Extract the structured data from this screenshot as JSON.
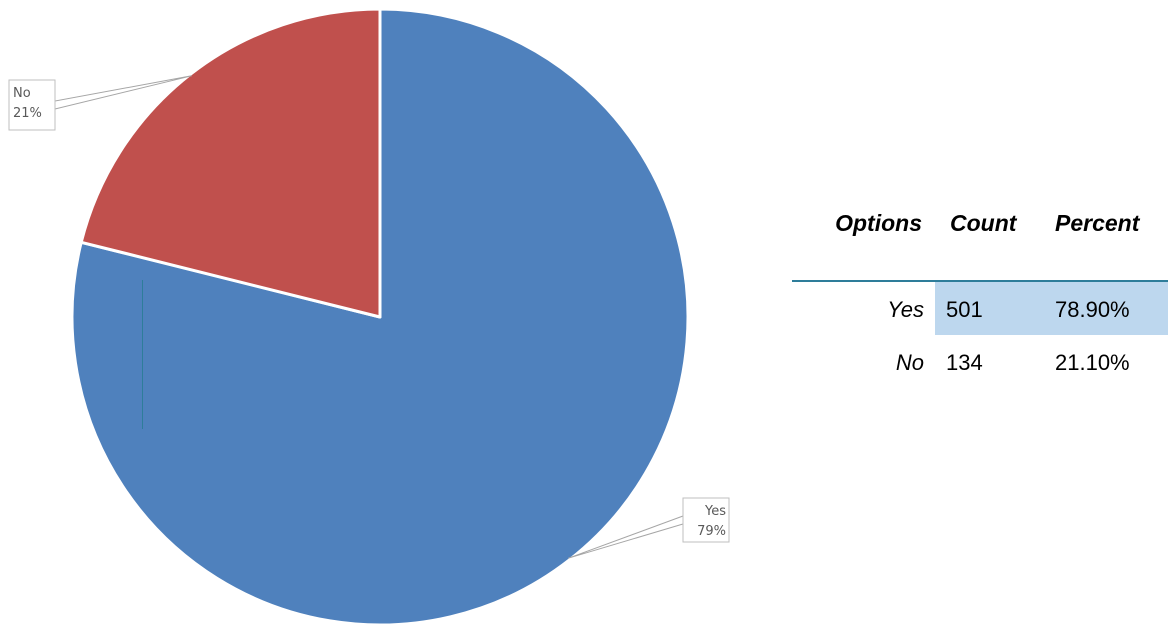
{
  "chart_data": {
    "type": "pie",
    "title": "",
    "slices": [
      {
        "label": "Yes",
        "value": 78.9,
        "percent_label": "79%",
        "color": "#4f81bd"
      },
      {
        "label": "No",
        "value": 21.1,
        "percent_label": "21%",
        "color": "#c0504d"
      }
    ],
    "start_angle_deg": 0,
    "direction": "clockwise",
    "data_labels": "outside with leader lines",
    "legend": "none"
  },
  "table": {
    "headers": {
      "options": "Options",
      "count": "Count",
      "percent": "Percent"
    },
    "rows": [
      {
        "option": "Yes",
        "count": "501",
        "percent": "78.90%",
        "highlight": "#bdd7ee"
      },
      {
        "option": "No",
        "count": "134",
        "percent": "21.10%",
        "highlight": ""
      }
    ]
  }
}
